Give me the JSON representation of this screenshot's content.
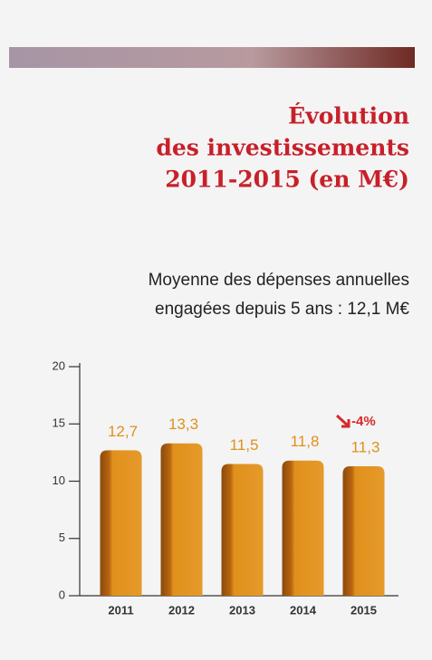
{
  "chart_data": {
    "type": "bar",
    "title": [
      "Évolution",
      "des investissements",
      "2011-2015 (en M€)"
    ],
    "subtitle": [
      "Moyenne des dépenses annuelles",
      "engagées depuis 5 ans : 12,1 M€"
    ],
    "categories": [
      "2011",
      "2012",
      "2013",
      "2014",
      "2015"
    ],
    "values": [
      12.7,
      13.3,
      11.5,
      11.8,
      11.3
    ],
    "value_labels": [
      "12,7",
      "13,3",
      "11,5",
      "11,8",
      "11,3"
    ],
    "annotations": [
      "-4%"
    ],
    "color": "#e0901c",
    "ylim": [
      0,
      20
    ],
    "yticks": [
      0,
      5,
      10,
      15,
      20
    ],
    "grid": false
  }
}
